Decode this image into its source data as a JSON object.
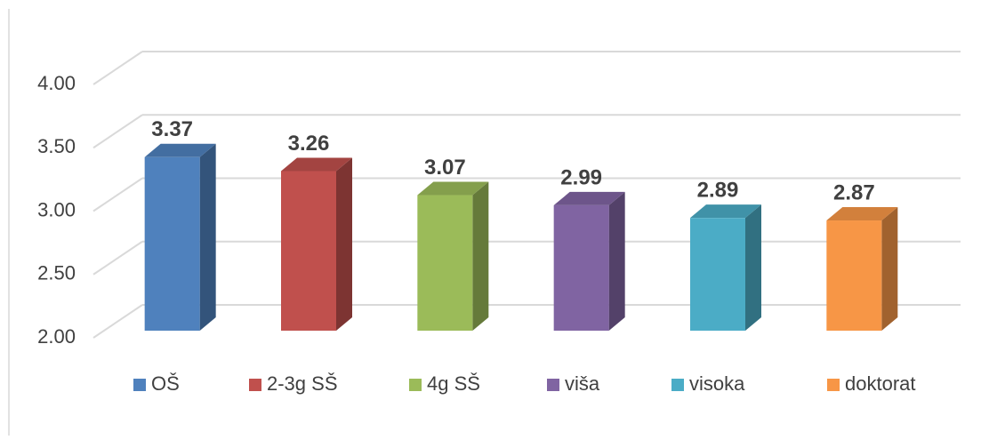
{
  "chart_data": {
    "type": "bar3d",
    "series": [
      {
        "name": "OŠ",
        "color": "#4f81bd",
        "values": [
          3.37
        ]
      },
      {
        "name": "2-3g SŠ",
        "color": "#c0504d",
        "values": [
          3.26
        ]
      },
      {
        "name": "4g SŠ",
        "color": "#9bbb59",
        "values": [
          3.07
        ]
      },
      {
        "name": "viša",
        "color": "#8064a2",
        "values": [
          2.99
        ]
      },
      {
        "name": "visoka",
        "color": "#4bacc6",
        "values": [
          2.89
        ]
      },
      {
        "name": "doktorat",
        "color": "#f79646",
        "values": [
          2.87
        ]
      }
    ],
    "ylim": [
      2,
      4
    ],
    "yticks": [
      {
        "value": 2,
        "label": "2.00"
      },
      {
        "value": 2.5,
        "label": "2.50"
      },
      {
        "value": 3,
        "label": "3.00"
      },
      {
        "value": 3.5,
        "label": "3.50"
      },
      {
        "value": 4,
        "label": "4.00"
      }
    ],
    "grid": true,
    "legend": "bottom"
  }
}
